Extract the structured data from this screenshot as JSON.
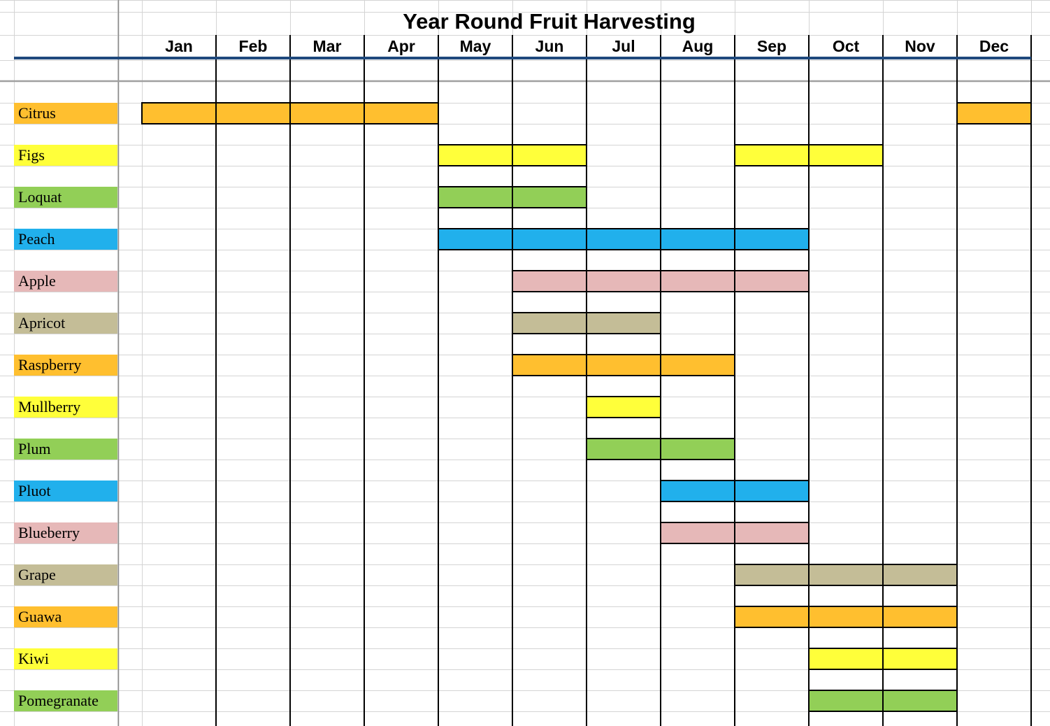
{
  "chart_data": {
    "type": "table",
    "title": "Year Round Fruit Harvesting",
    "months": [
      "Jan",
      "Feb",
      "Mar",
      "Apr",
      "May",
      "Jun",
      "Jul",
      "Aug",
      "Sep",
      "Oct",
      "Nov",
      "Dec"
    ],
    "fruits": [
      {
        "name": "Citrus",
        "color": "#FFBF2F",
        "months": [
          "Jan",
          "Feb",
          "Mar",
          "Apr",
          "Dec"
        ]
      },
      {
        "name": "Figs",
        "color": "#FFFF3A",
        "months": [
          "May",
          "Jun",
          "Sep",
          "Oct"
        ]
      },
      {
        "name": "Loquat",
        "color": "#92CF57",
        "months": [
          "May",
          "Jun"
        ]
      },
      {
        "name": "Peach",
        "color": "#21B0EC",
        "months": [
          "May",
          "Jun",
          "Jul",
          "Aug",
          "Sep"
        ]
      },
      {
        "name": "Apple",
        "color": "#E6B8B8",
        "months": [
          "Jun",
          "Jul",
          "Aug",
          "Sep"
        ]
      },
      {
        "name": "Apricot",
        "color": "#C4BD97",
        "months": [
          "Jun",
          "Jul"
        ]
      },
      {
        "name": "Raspberry",
        "color": "#FFBF2F",
        "months": [
          "Jun",
          "Jul",
          "Aug"
        ]
      },
      {
        "name": "Mullberry",
        "color": "#FFFF3A",
        "months": [
          "Jul"
        ]
      },
      {
        "name": "Plum",
        "color": "#92CF57",
        "months": [
          "Jul",
          "Aug"
        ]
      },
      {
        "name": "Pluot",
        "color": "#21B0EC",
        "months": [
          "Aug",
          "Sep"
        ]
      },
      {
        "name": "Blueberry",
        "color": "#E6B8B8",
        "months": [
          "Aug",
          "Sep"
        ]
      },
      {
        "name": "Grape",
        "color": "#C4BD97",
        "months": [
          "Sep",
          "Oct",
          "Nov"
        ]
      },
      {
        "name": "Guawa",
        "color": "#FFBF2F",
        "months": [
          "Sep",
          "Oct",
          "Nov"
        ]
      },
      {
        "name": "Kiwi",
        "color": "#FFFF3A",
        "months": [
          "Oct",
          "Nov"
        ]
      },
      {
        "name": "Pomegranate",
        "color": "#92CF57",
        "months": [
          "Oct",
          "Nov"
        ]
      }
    ],
    "header_rule_color": "#1F497D",
    "cell_grid_color": "#D4D4D4"
  }
}
